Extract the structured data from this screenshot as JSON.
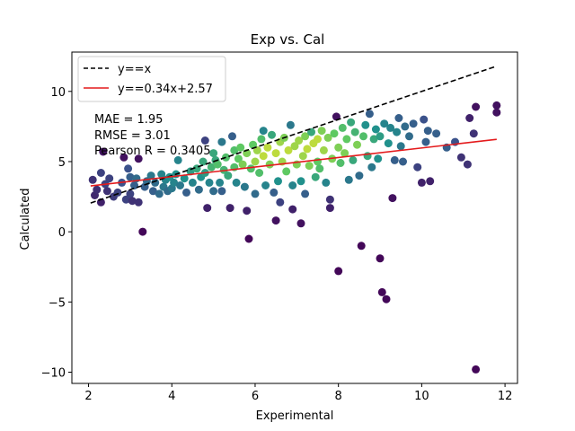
{
  "chart_data": {
    "type": "scatter",
    "title": "Exp vs. Cal",
    "xlabel": "Experimental",
    "ylabel": "Calculated",
    "xlim": [
      1.6,
      12.3
    ],
    "ylim": [
      -10.8,
      12.8
    ],
    "xticks": [
      2,
      4,
      6,
      8,
      10,
      12
    ],
    "yticks": [
      -10,
      -5,
      0,
      5,
      10
    ],
    "grid": false,
    "legend_position": "top-left",
    "series": [
      {
        "name": "y==x",
        "kind": "line",
        "style": "dashed",
        "color": "#000000",
        "x": [
          2.05,
          11.8
        ],
        "y": [
          2.05,
          11.8
        ]
      },
      {
        "name": "y==0.34x+2.57",
        "kind": "line",
        "style": "solid",
        "color": "#e41a1c",
        "x": [
          2.05,
          11.8
        ],
        "y": [
          3.267,
          6.582
        ]
      }
    ],
    "colormap": "viridis",
    "annotations": [
      "MAE = 1.95",
      "RMSE = 3.01",
      "Pearson R = 0.3405"
    ],
    "points": [
      [
        2.1,
        3.7,
        0.15
      ],
      [
        2.15,
        2.6,
        0.12
      ],
      [
        2.2,
        3.0,
        0.14
      ],
      [
        2.3,
        4.2,
        0.2
      ],
      [
        2.3,
        2.1,
        0.1
      ],
      [
        2.35,
        5.7,
        0.06
      ],
      [
        2.4,
        3.4,
        0.2
      ],
      [
        2.45,
        2.9,
        0.15
      ],
      [
        2.5,
        3.8,
        0.2
      ],
      [
        2.6,
        2.5,
        0.18
      ],
      [
        2.7,
        2.8,
        0.2
      ],
      [
        2.8,
        3.5,
        0.25
      ],
      [
        2.85,
        5.3,
        0.05
      ],
      [
        2.9,
        2.3,
        0.2
      ],
      [
        2.95,
        4.5,
        0.25
      ],
      [
        3.0,
        2.7,
        0.2
      ],
      [
        3.0,
        3.9,
        0.3
      ],
      [
        3.05,
        2.2,
        0.15
      ],
      [
        3.1,
        3.3,
        0.3
      ],
      [
        3.15,
        3.8,
        0.35
      ],
      [
        3.2,
        5.2,
        0.05
      ],
      [
        3.2,
        2.1,
        0.15
      ],
      [
        3.3,
        0.0,
        0.02
      ],
      [
        3.35,
        3.2,
        0.3
      ],
      [
        3.4,
        3.6,
        0.35
      ],
      [
        3.5,
        4.0,
        0.4
      ],
      [
        3.55,
        2.9,
        0.3
      ],
      [
        3.6,
        3.5,
        0.35
      ],
      [
        3.7,
        2.7,
        0.35
      ],
      [
        3.75,
        4.1,
        0.45
      ],
      [
        3.8,
        3.2,
        0.4
      ],
      [
        3.85,
        3.7,
        0.45
      ],
      [
        3.9,
        2.9,
        0.35
      ],
      [
        3.95,
        3.9,
        0.5
      ],
      [
        4.0,
        3.1,
        0.4
      ],
      [
        4.05,
        3.5,
        0.45
      ],
      [
        4.1,
        4.1,
        0.5
      ],
      [
        4.15,
        5.1,
        0.45
      ],
      [
        4.2,
        3.3,
        0.4
      ],
      [
        4.3,
        3.8,
        0.5
      ],
      [
        4.35,
        2.8,
        0.3
      ],
      [
        4.45,
        4.3,
        0.55
      ],
      [
        4.5,
        3.5,
        0.45
      ],
      [
        4.6,
        4.5,
        0.6
      ],
      [
        4.65,
        3.0,
        0.35
      ],
      [
        4.7,
        3.9,
        0.5
      ],
      [
        4.75,
        5.0,
        0.6
      ],
      [
        4.8,
        6.5,
        0.2
      ],
      [
        4.8,
        4.2,
        0.55
      ],
      [
        4.85,
        1.7,
        0.1
      ],
      [
        4.9,
        3.5,
        0.45
      ],
      [
        4.95,
        4.6,
        0.65
      ],
      [
        5.0,
        5.6,
        0.6
      ],
      [
        5.0,
        2.9,
        0.35
      ],
      [
        5.05,
        5.1,
        0.6
      ],
      [
        5.1,
        4.8,
        0.7
      ],
      [
        5.15,
        3.5,
        0.45
      ],
      [
        5.2,
        6.4,
        0.4
      ],
      [
        5.2,
        2.9,
        0.3
      ],
      [
        5.25,
        4.4,
        0.65
      ],
      [
        5.3,
        5.3,
        0.7
      ],
      [
        5.35,
        4.0,
        0.6
      ],
      [
        5.4,
        1.7,
        0.1
      ],
      [
        5.45,
        6.8,
        0.3
      ],
      [
        5.5,
        5.8,
        0.7
      ],
      [
        5.5,
        4.6,
        0.7
      ],
      [
        5.55,
        3.5,
        0.45
      ],
      [
        5.6,
        5.2,
        0.75
      ],
      [
        5.65,
        6.0,
        0.75
      ],
      [
        5.7,
        4.8,
        0.8
      ],
      [
        5.75,
        3.2,
        0.4
      ],
      [
        5.8,
        1.5,
        0.1
      ],
      [
        5.8,
        5.6,
        0.8
      ],
      [
        5.85,
        -0.5,
        0.02
      ],
      [
        5.9,
        4.5,
        0.7
      ],
      [
        5.95,
        6.2,
        0.75
      ],
      [
        6.0,
        5.0,
        0.85
      ],
      [
        6.0,
        2.7,
        0.35
      ],
      [
        6.05,
        5.8,
        0.85
      ],
      [
        6.1,
        4.2,
        0.7
      ],
      [
        6.15,
        6.6,
        0.7
      ],
      [
        6.2,
        7.2,
        0.45
      ],
      [
        6.2,
        5.4,
        0.9
      ],
      [
        6.25,
        3.3,
        0.45
      ],
      [
        6.3,
        6.0,
        0.9
      ],
      [
        6.35,
        4.8,
        0.8
      ],
      [
        6.4,
        6.9,
        0.6
      ],
      [
        6.45,
        2.8,
        0.3
      ],
      [
        6.5,
        5.6,
        0.9
      ],
      [
        6.5,
        0.8,
        0.05
      ],
      [
        6.55,
        3.6,
        0.5
      ],
      [
        6.6,
        6.4,
        0.85
      ],
      [
        6.6,
        2.1,
        0.2
      ],
      [
        6.65,
        5.0,
        0.85
      ],
      [
        6.7,
        6.7,
        0.8
      ],
      [
        6.75,
        4.3,
        0.75
      ],
      [
        6.8,
        5.8,
        0.9
      ],
      [
        6.85,
        7.6,
        0.4
      ],
      [
        6.9,
        3.3,
        0.45
      ],
      [
        6.9,
        1.6,
        0.1
      ],
      [
        6.95,
        6.1,
        0.85
      ],
      [
        7.0,
        4.8,
        0.8
      ],
      [
        7.05,
        6.5,
        0.85
      ],
      [
        7.1,
        3.6,
        0.5
      ],
      [
        7.1,
        0.6,
        0.05
      ],
      [
        7.15,
        5.4,
        0.85
      ],
      [
        7.2,
        6.8,
        0.8
      ],
      [
        7.2,
        2.7,
        0.3
      ],
      [
        7.25,
        5.9,
        0.9
      ],
      [
        7.3,
        4.7,
        0.8
      ],
      [
        7.35,
        7.1,
        0.6
      ],
      [
        7.4,
        6.3,
        0.9
      ],
      [
        7.45,
        3.9,
        0.6
      ],
      [
        7.5,
        6.6,
        0.9
      ],
      [
        7.5,
        5.0,
        0.75
      ],
      [
        7.55,
        4.5,
        0.7
      ],
      [
        7.6,
        7.2,
        0.8
      ],
      [
        7.65,
        5.8,
        0.85
      ],
      [
        7.7,
        3.5,
        0.45
      ],
      [
        7.75,
        6.7,
        0.8
      ],
      [
        7.8,
        2.3,
        0.15
      ],
      [
        7.8,
        1.7,
        0.1
      ],
      [
        7.85,
        5.2,
        0.8
      ],
      [
        7.9,
        7.0,
        0.75
      ],
      [
        7.95,
        8.2,
        0.05
      ],
      [
        8.0,
        6.0,
        0.8
      ],
      [
        8.0,
        -2.8,
        0.02
      ],
      [
        8.05,
        4.9,
        0.7
      ],
      [
        8.1,
        7.4,
        0.7
      ],
      [
        8.15,
        5.6,
        0.8
      ],
      [
        8.2,
        6.6,
        0.75
      ],
      [
        8.25,
        3.7,
        0.4
      ],
      [
        8.3,
        7.8,
        0.6
      ],
      [
        8.35,
        5.1,
        0.6
      ],
      [
        8.4,
        7.1,
        0.65
      ],
      [
        8.45,
        6.2,
        0.8
      ],
      [
        8.5,
        4.0,
        0.35
      ],
      [
        8.55,
        -1.0,
        0.02
      ],
      [
        8.6,
        6.8,
        0.7
      ],
      [
        8.65,
        7.6,
        0.5
      ],
      [
        8.7,
        5.4,
        0.6
      ],
      [
        8.75,
        8.4,
        0.3
      ],
      [
        8.8,
        4.6,
        0.4
      ],
      [
        8.85,
        6.6,
        0.6
      ],
      [
        8.9,
        7.3,
        0.5
      ],
      [
        8.95,
        5.2,
        0.5
      ],
      [
        9.0,
        -1.9,
        0.02
      ],
      [
        9.0,
        6.8,
        0.55
      ],
      [
        9.05,
        -4.3,
        0.02
      ],
      [
        9.1,
        7.7,
        0.45
      ],
      [
        9.15,
        -4.8,
        0.02
      ],
      [
        9.2,
        6.3,
        0.5
      ],
      [
        9.25,
        7.4,
        0.45
      ],
      [
        9.3,
        2.4,
        0.05
      ],
      [
        9.35,
        5.1,
        0.3
      ],
      [
        9.4,
        7.1,
        0.45
      ],
      [
        9.45,
        8.1,
        0.3
      ],
      [
        9.5,
        6.1,
        0.4
      ],
      [
        9.55,
        5.0,
        0.3
      ],
      [
        9.6,
        7.5,
        0.35
      ],
      [
        9.7,
        6.8,
        0.35
      ],
      [
        9.8,
        7.7,
        0.3
      ],
      [
        9.9,
        4.6,
        0.2
      ],
      [
        10.0,
        3.5,
        0.1
      ],
      [
        10.05,
        8.0,
        0.25
      ],
      [
        10.1,
        6.4,
        0.3
      ],
      [
        10.15,
        7.2,
        0.3
      ],
      [
        10.2,
        3.6,
        0.1
      ],
      [
        10.35,
        7.0,
        0.3
      ],
      [
        10.6,
        6.0,
        0.3
      ],
      [
        10.8,
        6.4,
        0.25
      ],
      [
        10.95,
        5.3,
        0.15
      ],
      [
        11.1,
        4.8,
        0.15
      ],
      [
        11.15,
        8.1,
        0.1
      ],
      [
        11.25,
        7.0,
        0.15
      ],
      [
        11.3,
        8.9,
        0.05
      ],
      [
        11.3,
        -9.8,
        0.02
      ],
      [
        11.8,
        8.5,
        0.05
      ],
      [
        11.8,
        9.0,
        0.05
      ]
    ]
  }
}
